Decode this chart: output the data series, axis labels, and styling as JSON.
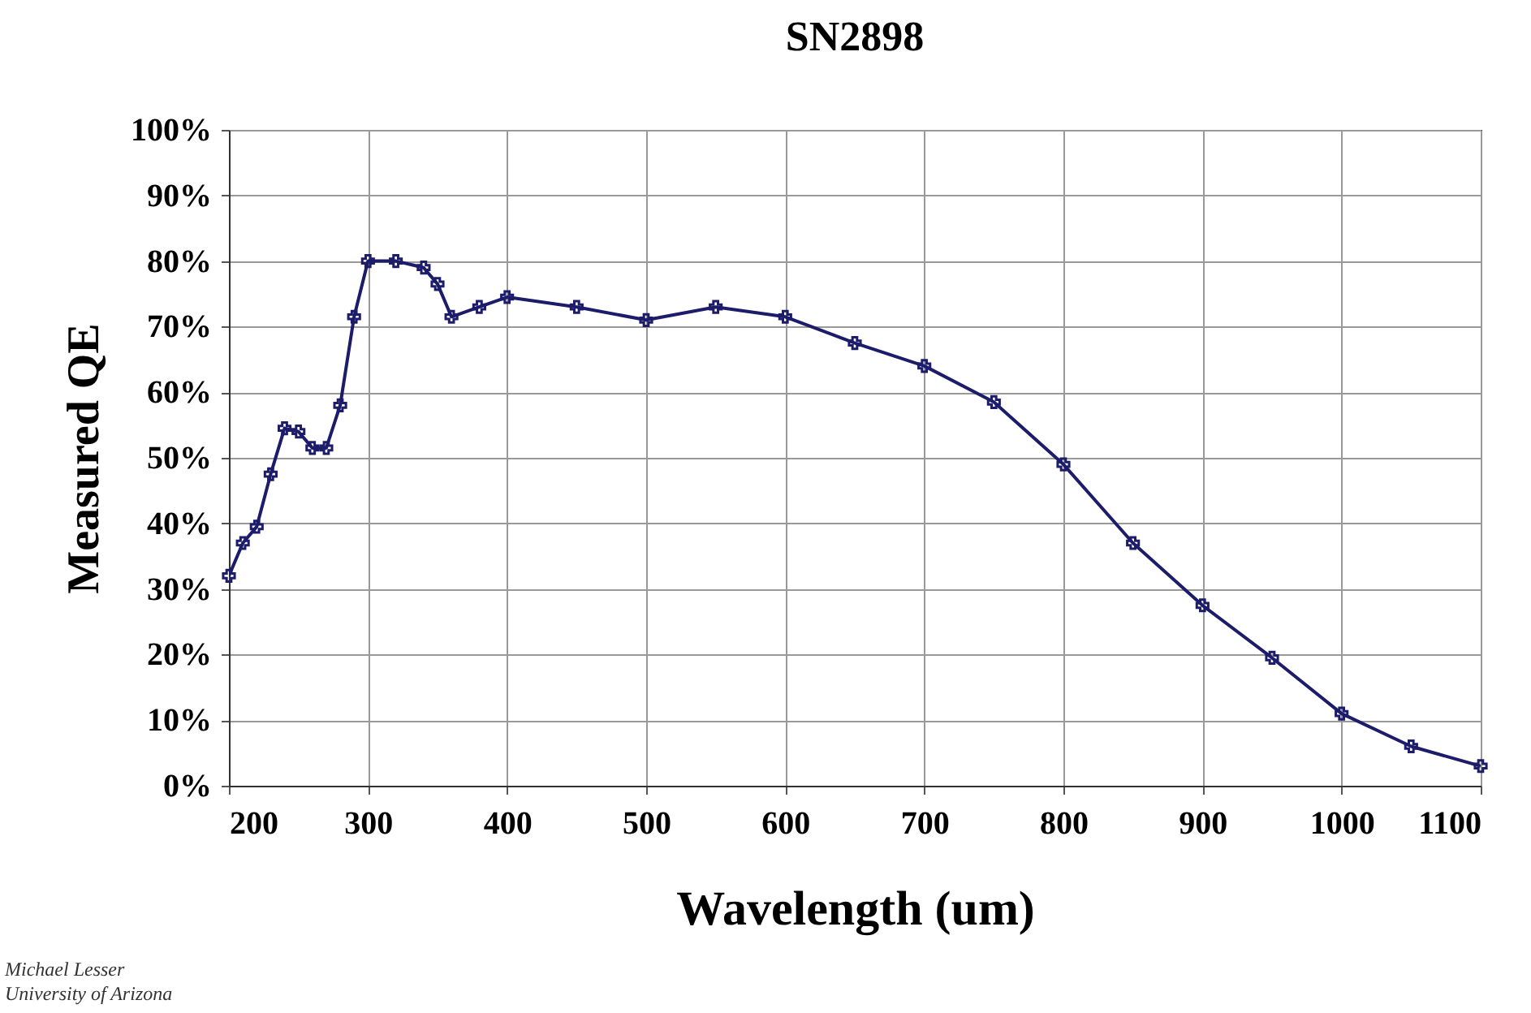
{
  "chart_data": {
    "type": "line",
    "title": "SN2898",
    "xlabel": "Wavelength (um)",
    "ylabel": "Measured QE",
    "annotations": [
      "Michael Lesser",
      "University of Arizona"
    ],
    "x": [
      200,
      210,
      220,
      230,
      240,
      250,
      260,
      270,
      280,
      290,
      300,
      320,
      340,
      350,
      360,
      380,
      400,
      450,
      500,
      550,
      600,
      650,
      700,
      750,
      800,
      850,
      900,
      950,
      1000,
      1050,
      1100
    ],
    "series": [
      {
        "color": "#1c1c6b",
        "values": [
          32,
          37,
          39.5,
          47.5,
          54.5,
          54,
          51.5,
          51.5,
          58,
          71.5,
          80,
          80,
          79,
          76.5,
          71.5,
          73,
          74.5,
          73,
          71,
          73,
          71.5,
          67.5,
          64,
          58.5,
          49,
          37,
          27.5,
          19.5,
          11,
          6,
          3
        ]
      }
    ],
    "xlim": [
      200,
      1100
    ],
    "xticks": [
      200,
      300,
      400,
      500,
      600,
      700,
      800,
      900,
      1000,
      1100
    ],
    "ylim": [
      0,
      100
    ],
    "yticks": [
      {
        "value": 0,
        "label": "0%"
      },
      {
        "value": 10,
        "label": "10%"
      },
      {
        "value": 20,
        "label": "20%"
      },
      {
        "value": 30,
        "label": "30%"
      },
      {
        "value": 40,
        "label": "40%"
      },
      {
        "value": 50,
        "label": "50%"
      },
      {
        "value": 60,
        "label": "60%"
      },
      {
        "value": 70,
        "label": "70%"
      },
      {
        "value": 80,
        "label": "80%"
      },
      {
        "value": 90,
        "label": "90%"
      },
      {
        "value": 100,
        "label": "100%"
      }
    ],
    "grid": true,
    "legend": false,
    "marker": "cross",
    "line_style": "solid"
  }
}
